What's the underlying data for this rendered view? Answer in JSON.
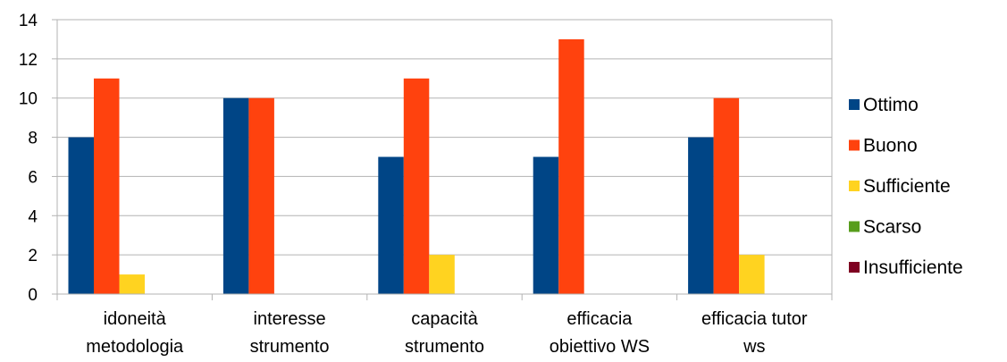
{
  "chart_data": {
    "type": "bar",
    "categories": [
      [
        "idoneità",
        "metodologia"
      ],
      [
        "interesse",
        "strumento"
      ],
      [
        "capacità",
        "strumento"
      ],
      [
        "efficacia",
        "obiettivo WS"
      ],
      [
        "efficacia tutor",
        "ws"
      ]
    ],
    "series": [
      {
        "name": "Ottimo",
        "color": "#004586",
        "values": [
          8,
          10,
          7,
          7,
          8
        ]
      },
      {
        "name": "Buono",
        "color": "#ff420e",
        "values": [
          11,
          10,
          11,
          13,
          10
        ]
      },
      {
        "name": "Sufficiente",
        "color": "#ffd320",
        "values": [
          1,
          0,
          2,
          0,
          2
        ]
      },
      {
        "name": "Scarso",
        "color": "#579d1c",
        "values": [
          0,
          0,
          0,
          0,
          0
        ]
      },
      {
        "name": "Insufficiente",
        "color": "#7e0021",
        "values": [
          0,
          0,
          0,
          0,
          0
        ]
      }
    ],
    "ylim": [
      0,
      14
    ],
    "yticks": [
      0,
      2,
      4,
      6,
      8,
      10,
      12,
      14
    ],
    "grid": true,
    "legend": "right"
  }
}
